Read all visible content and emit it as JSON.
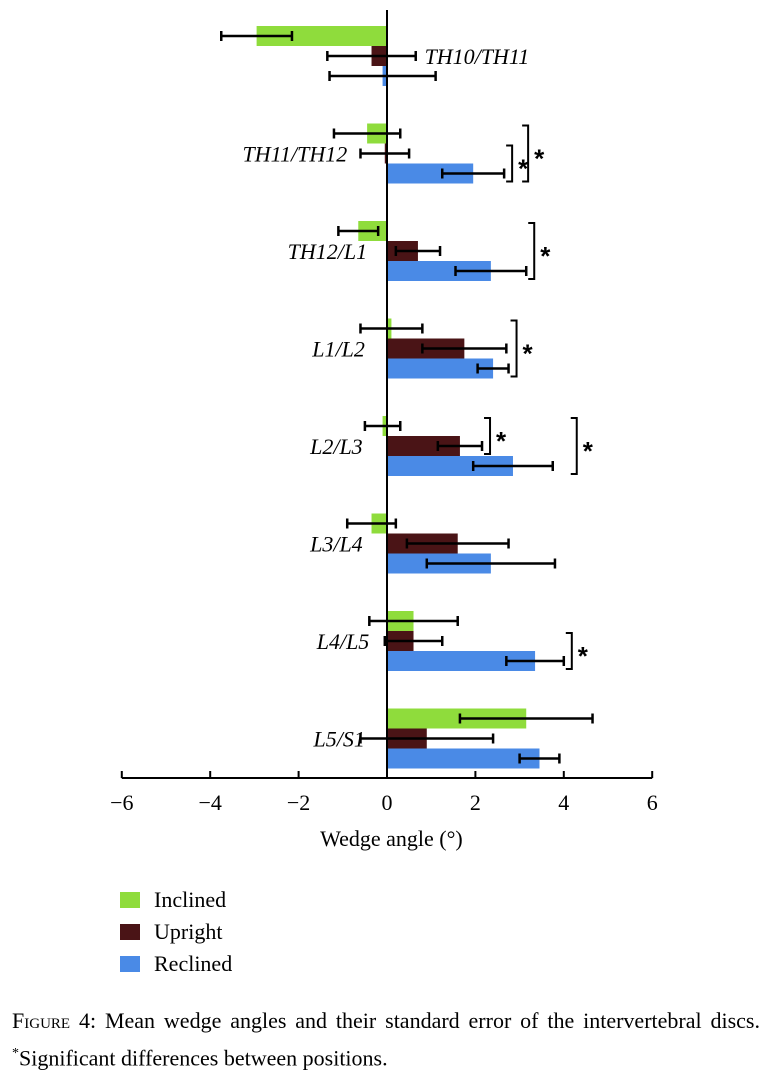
{
  "chart_data": {
    "type": "bar",
    "orientation": "horizontal",
    "categories": [
      "TH10/TH11",
      "TH11/TH12",
      "TH12/L1",
      "L1/L2",
      "L2/L3",
      "L3/L4",
      "L4/L5",
      "L5/S1"
    ],
    "series": [
      {
        "name": "Inclined",
        "color": "#8fdc3c",
        "values": [
          -2.95,
          -0.45,
          -0.65,
          0.1,
          -0.1,
          -0.35,
          0.6,
          3.15
        ],
        "errors": [
          0.8,
          0.75,
          0.45,
          0.7,
          0.4,
          0.55,
          1.0,
          1.5
        ]
      },
      {
        "name": "Upright",
        "color": "#4a1416",
        "values": [
          -0.35,
          -0.05,
          0.7,
          1.75,
          1.65,
          1.6,
          0.6,
          0.9
        ],
        "errors": [
          1.0,
          0.55,
          0.5,
          0.95,
          0.5,
          1.15,
          0.65,
          1.5
        ]
      },
      {
        "name": "Reclined",
        "color": "#4a8ae6",
        "values": [
          -0.1,
          1.95,
          2.35,
          2.4,
          2.85,
          2.35,
          3.35,
          3.45
        ],
        "errors": [
          1.2,
          0.7,
          0.8,
          0.35,
          0.9,
          1.45,
          0.65,
          0.45
        ]
      }
    ],
    "xlim": [
      -6,
      6
    ],
    "xticks": [
      "−6",
      "−4",
      "−2",
      "0",
      "2",
      "4",
      "6"
    ],
    "xtick_values": [
      -6,
      -4,
      -2,
      0,
      2,
      4,
      6
    ],
    "xlabel": "Wedge angle (°)",
    "significance": [
      {
        "category": "TH11/TH12",
        "pairs": [
          "Upright-Reclined",
          "Inclined-Reclined"
        ],
        "mark": "*"
      },
      {
        "category": "TH12/L1",
        "pairs": [
          "Inclined-Reclined"
        ],
        "mark": "*"
      },
      {
        "category": "L1/L2",
        "pairs": [
          "Inclined-Reclined"
        ],
        "mark": "*"
      },
      {
        "category": "L2/L3",
        "pairs": [
          "Inclined-Upright",
          "Inclined-Reclined"
        ],
        "mark": "*"
      },
      {
        "category": "L4/L5",
        "pairs": [
          "Upright-Reclined"
        ],
        "mark": "*"
      }
    ]
  },
  "legend": {
    "items": [
      {
        "label": "Inclined",
        "color": "#8fdc3c"
      },
      {
        "label": "Upright",
        "color": "#4a1416"
      },
      {
        "label": "Reclined",
        "color": "#4a8ae6"
      }
    ]
  },
  "caption": {
    "figure_label": "Figure 4:",
    "text": " Mean wedge angles and their standard error of the intervertebral discs. ",
    "asterisk": "*",
    "note": "Significant differences between positions."
  }
}
